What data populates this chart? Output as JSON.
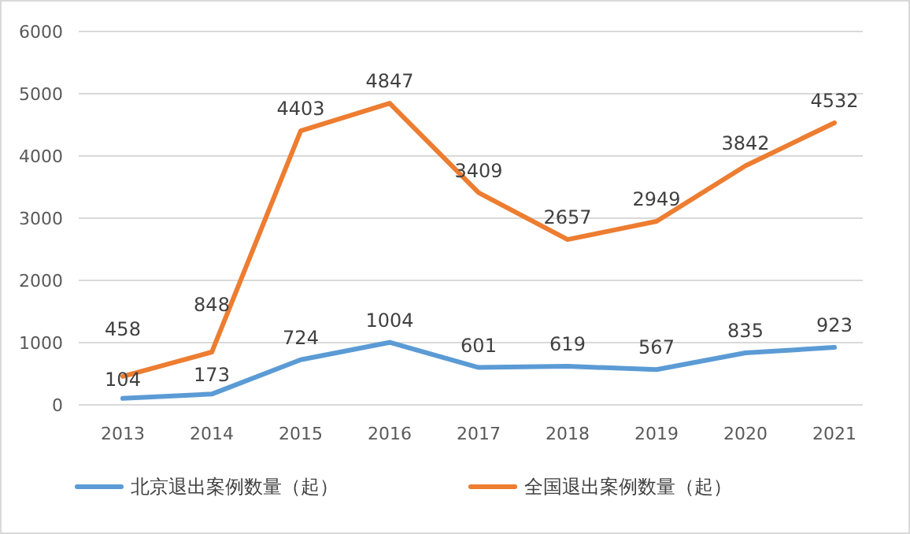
{
  "chart_data": {
    "type": "line",
    "categories": [
      "2013",
      "2014",
      "2015",
      "2016",
      "2017",
      "2018",
      "2019",
      "2020",
      "2021"
    ],
    "series": [
      {
        "name": "北京退出案例数量（起）",
        "color": "#5b9bd5",
        "values": [
          104,
          173,
          724,
          1004,
          601,
          619,
          567,
          835,
          923
        ]
      },
      {
        "name": "全国退出案例数量（起）",
        "color": "#ed7d31",
        "values": [
          458,
          848,
          4403,
          4847,
          3409,
          2657,
          2949,
          3842,
          4532
        ]
      }
    ],
    "ylim": [
      0,
      6000
    ],
    "yticks": [
      0,
      1000,
      2000,
      3000,
      4000,
      5000,
      6000
    ],
    "grid": "y",
    "legend": "bottom",
    "data_labels": true,
    "marker": "none",
    "line_style": "solid"
  }
}
